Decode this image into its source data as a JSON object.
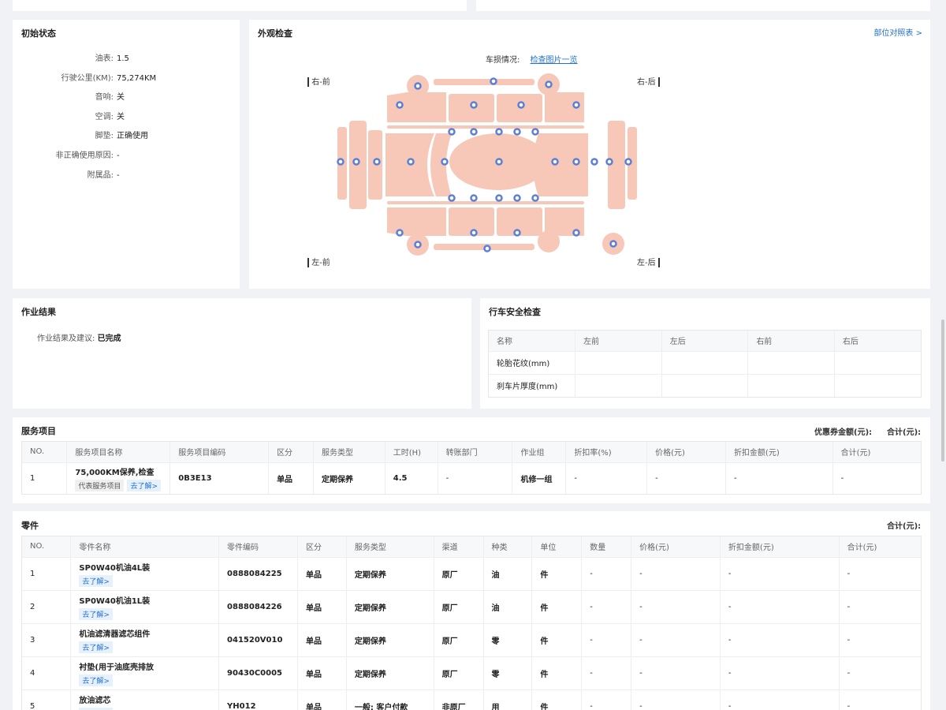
{
  "initial": {
    "title": "初始状态",
    "items": [
      {
        "k": "油表:",
        "v": "1.5"
      },
      {
        "k": "行驶公里(KM):",
        "v": "75,274KM"
      },
      {
        "k": "音响:",
        "v": "关"
      },
      {
        "k": "空调:",
        "v": "关"
      },
      {
        "k": "脚垫:",
        "v": "正确使用"
      },
      {
        "k": "非正确使用原因:",
        "v": "-"
      },
      {
        "k": "附属品:",
        "v": "-"
      }
    ]
  },
  "exterior": {
    "title": "外观检查",
    "link": "部位对照表 >",
    "damage_label": "车损情况:",
    "damage_link": "检查图片一览",
    "rf": "右-前",
    "rr": "右-后",
    "lf": "左-前",
    "lr": "左-后"
  },
  "work": {
    "title": "作业结果",
    "label": "作业结果及建议:",
    "value": "已完成"
  },
  "safety": {
    "title": "行车安全检查",
    "headers": [
      "名称",
      "左前",
      "左后",
      "右前",
      "右后"
    ],
    "rows": [
      [
        "轮胎花纹(mm)",
        "",
        "",
        "",
        ""
      ],
      [
        "刹车片厚度(mm)",
        "",
        "",
        "",
        ""
      ]
    ]
  },
  "service": {
    "title": "服务项目",
    "coupon": "优惠券金额(元):",
    "total": "合计(元):",
    "headers": [
      "NO.",
      "服务项目名称",
      "服务项目编码",
      "区分",
      "服务类型",
      "工时(H)",
      "转账部门",
      "作业组",
      "折扣率(%)",
      "价格(元)",
      "折扣金额(元)",
      "合计(元)"
    ],
    "row": {
      "no": "1",
      "name": "75,000KM保养,检查",
      "tag": "代表服务项目",
      "more": "去了解>",
      "code": "0B3E13",
      "kind": "单品",
      "type": "定期保养",
      "hours": "4.5",
      "dept": "-",
      "group": "机修一组",
      "rate": "-",
      "price": "-",
      "discount": "-",
      "sum": "-"
    }
  },
  "parts": {
    "title": "零件",
    "total": "合计(元):",
    "more": "去了解>",
    "headers": [
      "NO.",
      "零件名称",
      "零件编码",
      "区分",
      "服务类型",
      "渠道",
      "种类",
      "单位",
      "数量",
      "价格(元)",
      "折扣金额(元)",
      "合计(元)"
    ],
    "rows": [
      [
        "1",
        "SP0W40机油4L装",
        "0888084225",
        "单品",
        "定期保养",
        "原厂",
        "油",
        "件",
        "-",
        "-",
        "-",
        "-"
      ],
      [
        "2",
        "SP0W40机油1L装",
        "0888084226",
        "单品",
        "定期保养",
        "原厂",
        "油",
        "件",
        "-",
        "-",
        "-",
        "-"
      ],
      [
        "3",
        "机油滤清器滤芯组件",
        "041520V010",
        "单品",
        "定期保养",
        "原厂",
        "零",
        "件",
        "-",
        "-",
        "-",
        "-"
      ],
      [
        "4",
        "衬垫(用于油底壳排放",
        "90430C0005",
        "单品",
        "定期保养",
        "原厂",
        "零",
        "件",
        "-",
        "-",
        "-",
        "-"
      ],
      [
        "5",
        "放油滤芯",
        "YH012",
        "单品",
        "一般: 客户付款",
        "非原厂",
        "用",
        "件",
        "-",
        "-",
        "-",
        "-"
      ]
    ]
  }
}
